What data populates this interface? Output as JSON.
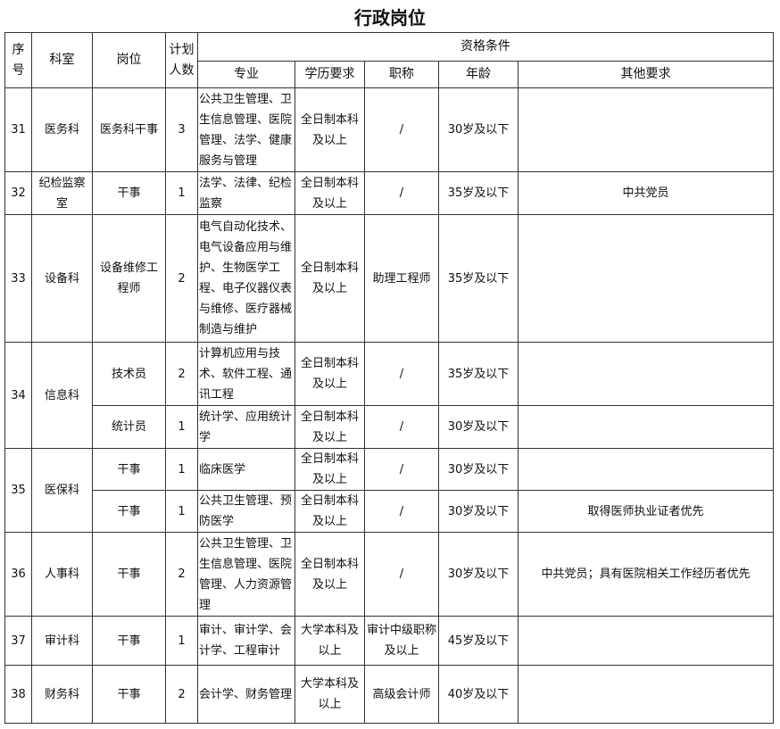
{
  "title": "行政岗位",
  "header": {
    "no": "序号",
    "dept": "科室",
    "post": "岗位",
    "count": "计划人数",
    "qual": "资格条件",
    "major": "专业",
    "edu": "学历要求",
    "rank": "职称",
    "age": "年龄",
    "other": "其他要求"
  },
  "rows": [
    {
      "no": "31",
      "dept": "医务科",
      "posts": [
        {
          "post": "医务科干事",
          "count": "3",
          "major": "公共卫生管理、卫生信息管理、医院管理、法学、健康服务与管理",
          "edu": "全日制本科及以上",
          "rank": "/",
          "age": "30岁及以下"
        }
      ]
    },
    {
      "no": "32",
      "dept": "纪检监察室",
      "posts": [
        {
          "post": "干事",
          "count": "1",
          "major": "法学、法律、纪检监察",
          "edu": "全日制本科及以上",
          "rank": "/",
          "age": "35岁及以下",
          "other": "中共党员"
        }
      ]
    },
    {
      "no": "33",
      "dept": "设备科",
      "posts": [
        {
          "post": "设备维修工程师",
          "count": "2",
          "major": "电气自动化技术、电气设备应用与维护、生物医学工程、电子仪器仪表与维修、医疗器械制造与维护",
          "edu": "全日制本科及以上",
          "rank": "助理工程师",
          "age": "35岁及以下"
        }
      ]
    },
    {
      "no": "34",
      "dept": "信息科",
      "posts": [
        {
          "post": "技术员",
          "count": "2",
          "major": "计算机应用与技术、软件工程、通讯工程",
          "edu": "全日制本科及以上",
          "rank": "/",
          "age": "35岁及以下"
        },
        {
          "post": "统计员",
          "count": "1",
          "major": "统计学、应用统计学",
          "edu": "全日制本科及以上",
          "rank": "/",
          "age": "30岁及以下"
        }
      ]
    },
    {
      "no": "35",
      "dept": "医保科",
      "posts": [
        {
          "post": "干事",
          "count": "1",
          "major": "临床医学",
          "edu": "全日制本科及以上",
          "rank": "/",
          "age": "30岁及以下"
        },
        {
          "post": "干事",
          "count": "1",
          "major": "公共卫生管理、预防医学",
          "edu": "全日制本科及以上",
          "rank": "/",
          "age": "30岁及以下",
          "other": "取得医师执业证者优先"
        }
      ]
    },
    {
      "no": "36",
      "dept": "人事科",
      "posts": [
        {
          "post": "干事",
          "count": "2",
          "major": "公共卫生管理、卫生信息管理、医院管理、人力资源管理",
          "edu": "全日制本科及以上",
          "rank": "/",
          "age": "30岁及以下",
          "other": "中共党员；具有医院相关工作经历者优先"
        }
      ]
    },
    {
      "no": "37",
      "dept": "审计科",
      "posts": [
        {
          "post": "干事",
          "count": "1",
          "major": "审计、审计学、会计学、工程审计",
          "edu": "大学本科及以上",
          "rank": "审计中级职称及以上",
          "age": "45岁及以下"
        }
      ]
    },
    {
      "no": "38",
      "dept": "财务科",
      "posts": [
        {
          "post": "干事",
          "count": "2",
          "major": "会计学、财务管理",
          "edu": "大学本科及以上",
          "rank": "高级会计师",
          "age": "40岁及以下"
        }
      ]
    }
  ]
}
